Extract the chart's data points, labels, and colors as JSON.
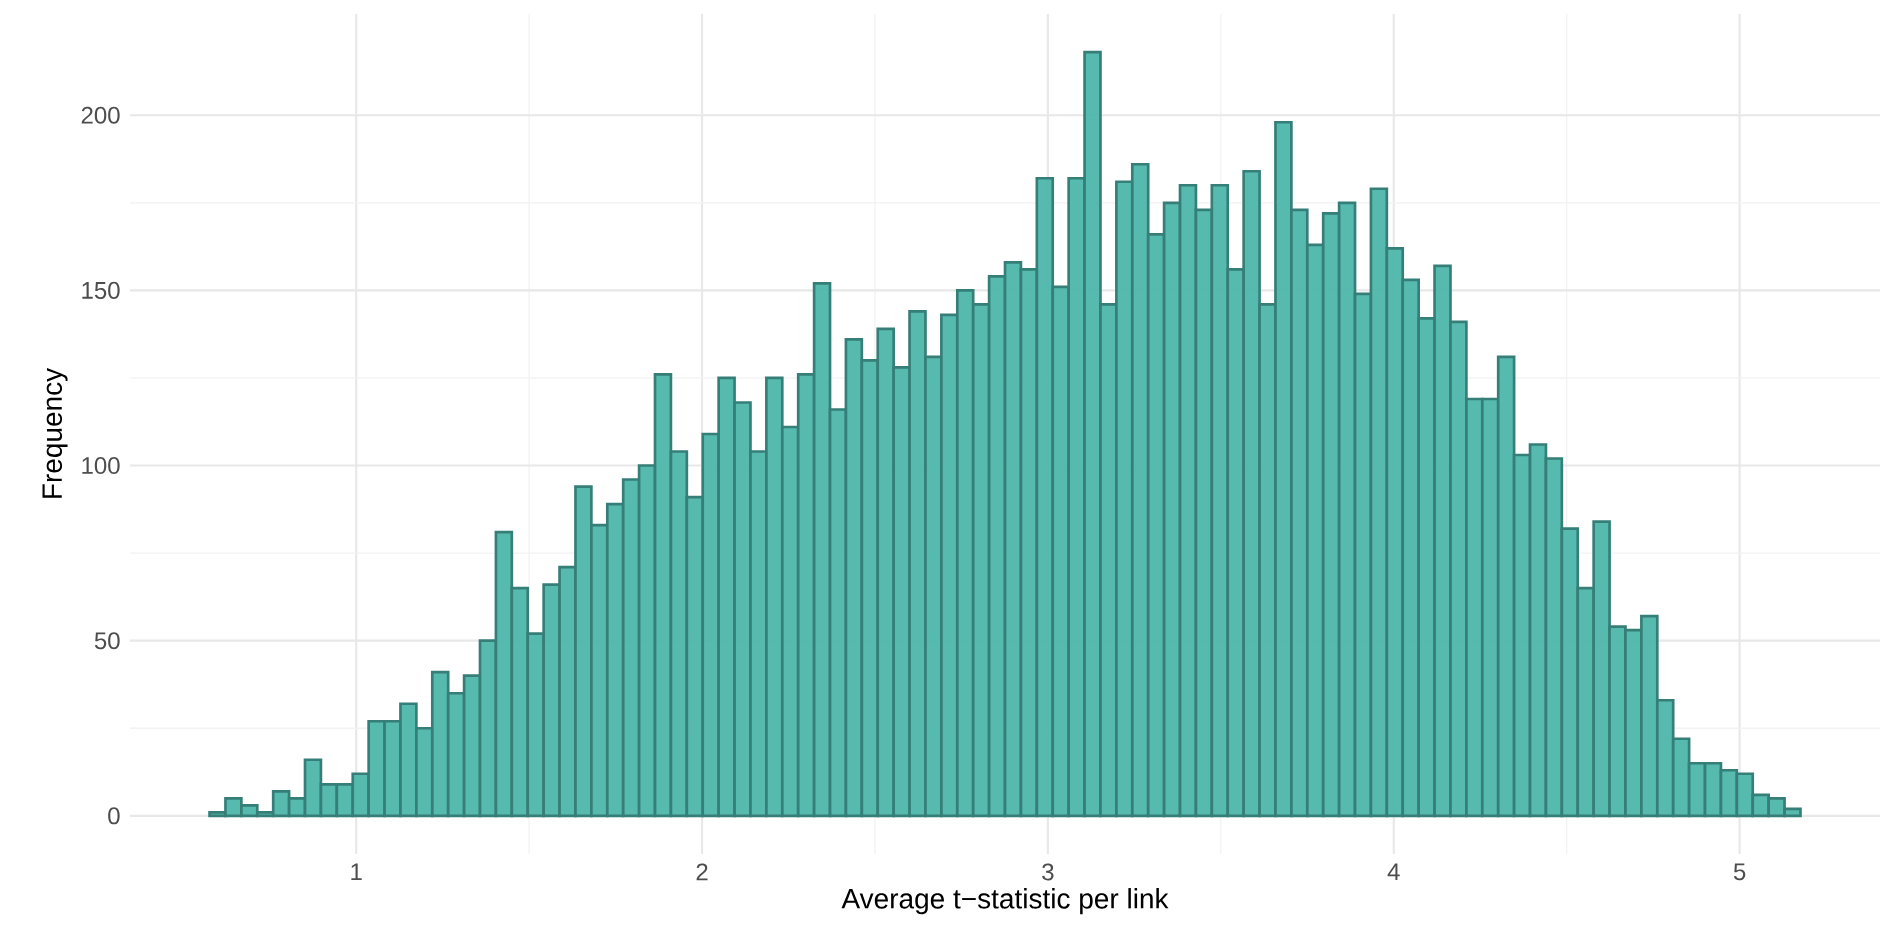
{
  "chart_data": {
    "type": "histogram",
    "xlabel": "Average t−statistic per link",
    "ylabel": "Frequency",
    "bins": [
      0.576,
      0.622,
      0.668,
      0.714,
      0.76,
      0.806,
      0.852,
      0.898,
      0.944,
      0.99,
      1.036,
      1.082,
      1.128,
      1.174,
      1.22,
      1.266,
      1.312,
      1.358,
      1.404,
      1.45,
      1.496,
      1.542,
      1.588,
      1.634,
      1.68,
      1.726,
      1.772,
      1.818,
      1.864,
      1.91,
      1.956,
      2.002,
      2.048,
      2.094,
      2.14,
      2.186,
      2.232,
      2.278,
      2.324,
      2.37,
      2.416,
      2.462,
      2.508,
      2.554,
      2.6,
      2.646,
      2.692,
      2.738,
      2.784,
      2.83,
      2.876,
      2.922,
      2.968,
      3.014,
      3.06,
      3.106,
      3.152,
      3.198,
      3.244,
      3.29,
      3.336,
      3.382,
      3.428,
      3.474,
      3.52,
      3.566,
      3.612,
      3.658,
      3.704,
      3.75,
      3.796,
      3.842,
      3.888,
      3.934,
      3.98,
      4.026,
      4.072,
      4.118,
      4.164,
      4.21,
      4.256,
      4.302,
      4.348,
      4.394,
      4.44,
      4.486,
      4.532,
      4.578,
      4.624,
      4.67,
      4.716,
      4.762,
      4.808,
      4.854,
      4.9,
      4.946,
      4.992,
      5.038,
      5.084,
      5.13,
      5.176
    ],
    "values": [
      1,
      5,
      3,
      1,
      7,
      5,
      16,
      9,
      9,
      12,
      27,
      27,
      32,
      25,
      41,
      35,
      40,
      50,
      81,
      65,
      52,
      66,
      71,
      94,
      83,
      89,
      96,
      100,
      126,
      104,
      91,
      109,
      125,
      118,
      104,
      125,
      111,
      126,
      152,
      116,
      136,
      130,
      139,
      128,
      144,
      131,
      143,
      150,
      146,
      154,
      158,
      156,
      182,
      151,
      182,
      218,
      146,
      181,
      186,
      166,
      175,
      180,
      173,
      180,
      156,
      184,
      146,
      198,
      173,
      163,
      172,
      175,
      149,
      179,
      162,
      153,
      142,
      157,
      141,
      119,
      119,
      131,
      103,
      106,
      102,
      82,
      65,
      84,
      54,
      53,
      57,
      33,
      22,
      15,
      15,
      13,
      12,
      6,
      5,
      2
    ],
    "color": "#4db6ab",
    "xlim": [
      0.346,
      5.406
    ],
    "ylim": [
      -10.9,
      228.9
    ],
    "xticks": [
      1,
      2,
      3,
      4,
      5
    ],
    "yticks": [
      0,
      50,
      100,
      150,
      200
    ],
    "grid": true
  }
}
